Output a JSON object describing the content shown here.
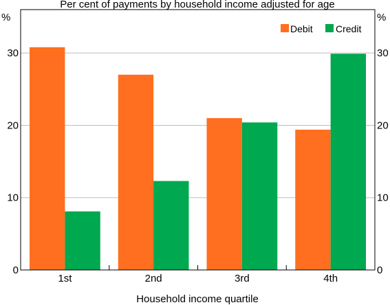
{
  "chart_data": {
    "type": "bar",
    "title": "Per cent of payments by household income adjusted for age",
    "xlabel": "Household income quartile",
    "ylabel_left": "%",
    "ylabel_right": "%",
    "ylim": [
      0,
      36
    ],
    "yticks": [
      0,
      10,
      20,
      30
    ],
    "categories": [
      "1st",
      "2nd",
      "3rd",
      "4th"
    ],
    "series": [
      {
        "name": "Debit",
        "color": "#FF6F1F",
        "values": [
          30.8,
          27.0,
          21.0,
          19.4
        ]
      },
      {
        "name": "Credit",
        "color": "#00A84F",
        "values": [
          8.1,
          12.3,
          20.4,
          29.9
        ]
      }
    ],
    "grid": true,
    "legend_position": "top-right"
  }
}
